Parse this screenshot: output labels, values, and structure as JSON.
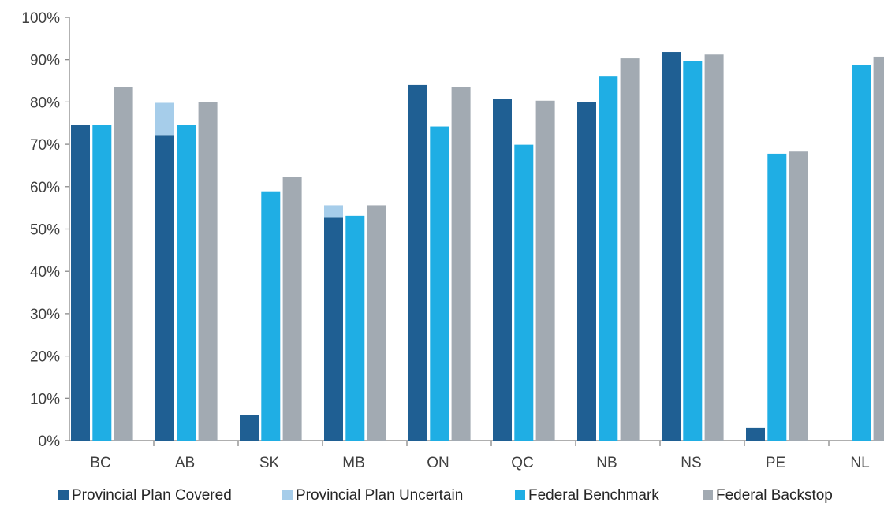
{
  "chart_data": {
    "type": "bar",
    "stacked_series": [
      [
        "Provincial Plan Covered",
        "Provincial Plan Uncertain"
      ]
    ],
    "categories": [
      "BC",
      "AB",
      "SK",
      "MB",
      "ON",
      "QC",
      "NB",
      "NS",
      "PE",
      "NL"
    ],
    "series": [
      {
        "name": "Provincial Plan Covered",
        "color": "#1f5f93",
        "values": [
          74.5,
          72.2,
          6.0,
          52.8,
          84.0,
          80.8,
          80.0,
          91.8,
          3.0,
          0
        ]
      },
      {
        "name": "Provincial Plan Uncertain",
        "color": "#a6cdea",
        "values": [
          0,
          7.6,
          0,
          2.8,
          0,
          0,
          0,
          0,
          0,
          0
        ]
      },
      {
        "name": "Federal Benchmark",
        "color": "#1faee4",
        "values": [
          74.5,
          74.5,
          58.9,
          53.1,
          74.2,
          69.9,
          86.0,
          89.7,
          67.8,
          88.8
        ]
      },
      {
        "name": "Federal Backstop",
        "color": "#a2aab2",
        "values": [
          83.6,
          80.0,
          62.3,
          55.6,
          83.6,
          80.3,
          90.3,
          91.2,
          68.3,
          90.7
        ]
      }
    ],
    "ylim": [
      0,
      100
    ],
    "yticks": [
      "0%",
      "10%",
      "20%",
      "30%",
      "40%",
      "50%",
      "60%",
      "70%",
      "80%",
      "90%",
      "100%"
    ],
    "grid": false,
    "legend_position": "bottom",
    "title": "",
    "xlabel": "",
    "ylabel": ""
  }
}
